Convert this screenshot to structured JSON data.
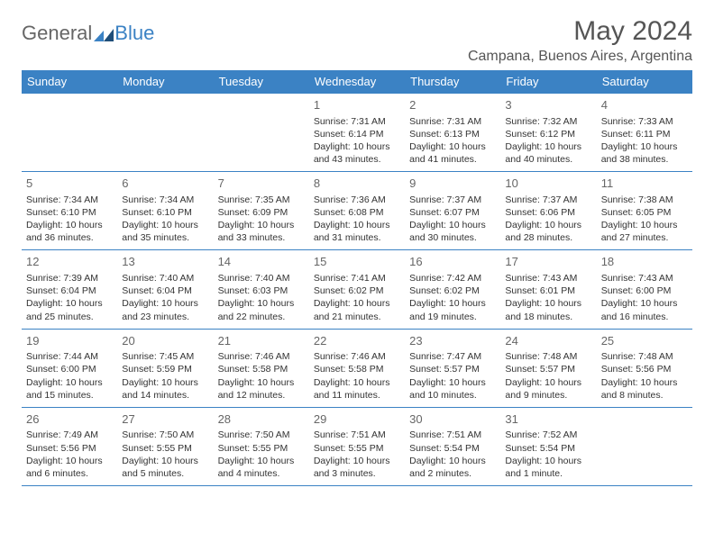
{
  "brand": {
    "part1": "General",
    "part2": "Blue"
  },
  "title": "May 2024",
  "location": "Campana, Buenos Aires, Argentina",
  "colors": {
    "accent": "#3b82c4",
    "header_text": "#ffffff",
    "body_text": "#333333",
    "muted_text": "#666666",
    "background": "#ffffff"
  },
  "calendar": {
    "type": "table",
    "day_headers": [
      "Sunday",
      "Monday",
      "Tuesday",
      "Wednesday",
      "Thursday",
      "Friday",
      "Saturday"
    ],
    "weeks": [
      [
        null,
        null,
        null,
        {
          "n": "1",
          "sr": "7:31 AM",
          "ss": "6:14 PM",
          "dl": "10 hours and 43 minutes."
        },
        {
          "n": "2",
          "sr": "7:31 AM",
          "ss": "6:13 PM",
          "dl": "10 hours and 41 minutes."
        },
        {
          "n": "3",
          "sr": "7:32 AM",
          "ss": "6:12 PM",
          "dl": "10 hours and 40 minutes."
        },
        {
          "n": "4",
          "sr": "7:33 AM",
          "ss": "6:11 PM",
          "dl": "10 hours and 38 minutes."
        }
      ],
      [
        {
          "n": "5",
          "sr": "7:34 AM",
          "ss": "6:10 PM",
          "dl": "10 hours and 36 minutes."
        },
        {
          "n": "6",
          "sr": "7:34 AM",
          "ss": "6:10 PM",
          "dl": "10 hours and 35 minutes."
        },
        {
          "n": "7",
          "sr": "7:35 AM",
          "ss": "6:09 PM",
          "dl": "10 hours and 33 minutes."
        },
        {
          "n": "8",
          "sr": "7:36 AM",
          "ss": "6:08 PM",
          "dl": "10 hours and 31 minutes."
        },
        {
          "n": "9",
          "sr": "7:37 AM",
          "ss": "6:07 PM",
          "dl": "10 hours and 30 minutes."
        },
        {
          "n": "10",
          "sr": "7:37 AM",
          "ss": "6:06 PM",
          "dl": "10 hours and 28 minutes."
        },
        {
          "n": "11",
          "sr": "7:38 AM",
          "ss": "6:05 PM",
          "dl": "10 hours and 27 minutes."
        }
      ],
      [
        {
          "n": "12",
          "sr": "7:39 AM",
          "ss": "6:04 PM",
          "dl": "10 hours and 25 minutes."
        },
        {
          "n": "13",
          "sr": "7:40 AM",
          "ss": "6:04 PM",
          "dl": "10 hours and 23 minutes."
        },
        {
          "n": "14",
          "sr": "7:40 AM",
          "ss": "6:03 PM",
          "dl": "10 hours and 22 minutes."
        },
        {
          "n": "15",
          "sr": "7:41 AM",
          "ss": "6:02 PM",
          "dl": "10 hours and 21 minutes."
        },
        {
          "n": "16",
          "sr": "7:42 AM",
          "ss": "6:02 PM",
          "dl": "10 hours and 19 minutes."
        },
        {
          "n": "17",
          "sr": "7:43 AM",
          "ss": "6:01 PM",
          "dl": "10 hours and 18 minutes."
        },
        {
          "n": "18",
          "sr": "7:43 AM",
          "ss": "6:00 PM",
          "dl": "10 hours and 16 minutes."
        }
      ],
      [
        {
          "n": "19",
          "sr": "7:44 AM",
          "ss": "6:00 PM",
          "dl": "10 hours and 15 minutes."
        },
        {
          "n": "20",
          "sr": "7:45 AM",
          "ss": "5:59 PM",
          "dl": "10 hours and 14 minutes."
        },
        {
          "n": "21",
          "sr": "7:46 AM",
          "ss": "5:58 PM",
          "dl": "10 hours and 12 minutes."
        },
        {
          "n": "22",
          "sr": "7:46 AM",
          "ss": "5:58 PM",
          "dl": "10 hours and 11 minutes."
        },
        {
          "n": "23",
          "sr": "7:47 AM",
          "ss": "5:57 PM",
          "dl": "10 hours and 10 minutes."
        },
        {
          "n": "24",
          "sr": "7:48 AM",
          "ss": "5:57 PM",
          "dl": "10 hours and 9 minutes."
        },
        {
          "n": "25",
          "sr": "7:48 AM",
          "ss": "5:56 PM",
          "dl": "10 hours and 8 minutes."
        }
      ],
      [
        {
          "n": "26",
          "sr": "7:49 AM",
          "ss": "5:56 PM",
          "dl": "10 hours and 6 minutes."
        },
        {
          "n": "27",
          "sr": "7:50 AM",
          "ss": "5:55 PM",
          "dl": "10 hours and 5 minutes."
        },
        {
          "n": "28",
          "sr": "7:50 AM",
          "ss": "5:55 PM",
          "dl": "10 hours and 4 minutes."
        },
        {
          "n": "29",
          "sr": "7:51 AM",
          "ss": "5:55 PM",
          "dl": "10 hours and 3 minutes."
        },
        {
          "n": "30",
          "sr": "7:51 AM",
          "ss": "5:54 PM",
          "dl": "10 hours and 2 minutes."
        },
        {
          "n": "31",
          "sr": "7:52 AM",
          "ss": "5:54 PM",
          "dl": "10 hours and 1 minute."
        },
        null
      ]
    ],
    "labels": {
      "sunrise": "Sunrise:",
      "sunset": "Sunset:",
      "daylight": "Daylight:"
    }
  }
}
